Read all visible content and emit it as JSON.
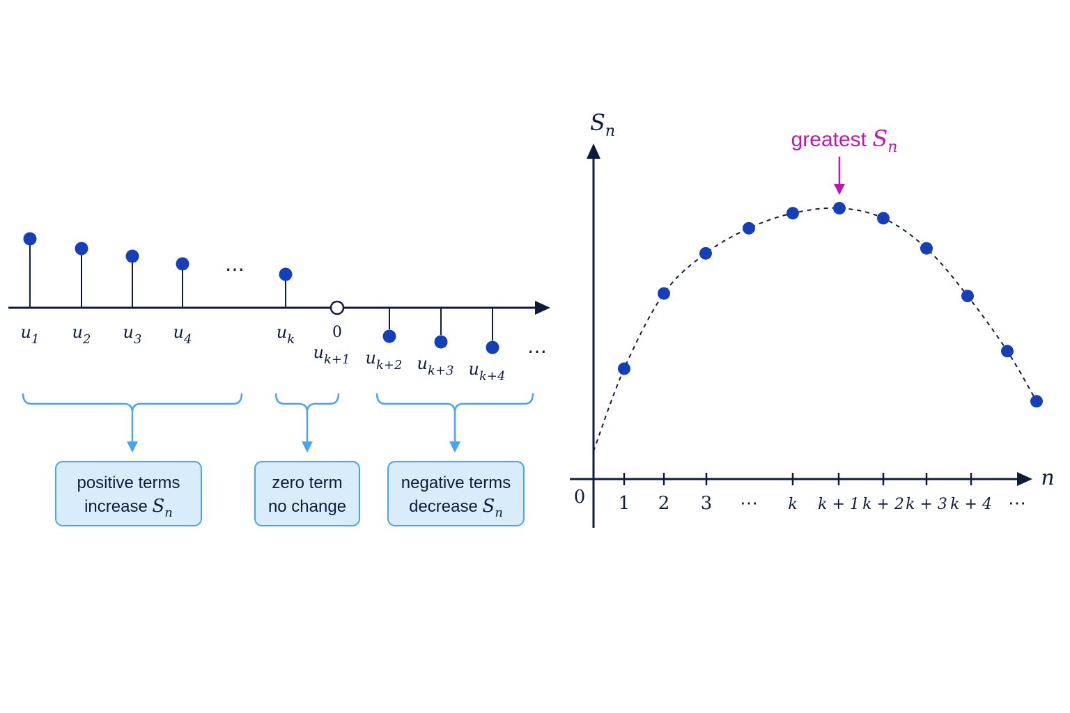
{
  "colors": {
    "axis": "#0f1b3d",
    "dot": "#1340b8",
    "bracket": "#4aa3ee",
    "box_fill": "#d8ecfb",
    "box_border": "#4aa3ee",
    "highlight": "#c014b8"
  },
  "left_diagram": {
    "terms": [
      {
        "base": "u",
        "sub": "1"
      },
      {
        "base": "u",
        "sub": "2"
      },
      {
        "base": "u",
        "sub": "3"
      },
      {
        "base": "u",
        "sub": "4"
      },
      {
        "base": "u",
        "sub": "k"
      },
      {
        "base": "u",
        "sub": "k+1"
      },
      {
        "base": "u",
        "sub": "k+2"
      },
      {
        "base": "u",
        "sub": "k+3"
      },
      {
        "base": "u",
        "sub": "k+4"
      }
    ],
    "zero_label": "0",
    "ellipsis_mid": "⋯",
    "ellipsis_end": "⋯",
    "groups": [
      {
        "line1": "positive terms",
        "line2_text": "increase ",
        "line2_sym": "S",
        "line2_sub": "n"
      },
      {
        "line1": "zero term",
        "line2_text": "no change",
        "line2_sym": "",
        "line2_sub": ""
      },
      {
        "line1": "negative terms",
        "line2_text": "decrease ",
        "line2_sym": "S",
        "line2_sub": "n"
      }
    ]
  },
  "chart_data": {
    "type": "scatter",
    "title": "",
    "xlabel": "n",
    "ylabel": "S",
    "ylabel_sub": "n",
    "origin_label": "0",
    "x_ticks": [
      "1",
      "2",
      "3",
      "⋯",
      "k",
      "k+1",
      "k+2",
      "k+3",
      "k+4",
      "⋯"
    ],
    "series": [
      {
        "x": [
          1,
          2,
          3,
          4,
          5,
          6,
          7,
          8,
          9,
          10,
          11
        ],
        "y": [
          4.4,
          7.4,
          9.0,
          10.0,
          10.6,
          10.8,
          10.4,
          9.2,
          7.3,
          5.1,
          3.1
        ]
      }
    ],
    "trend_start_y": 0.5,
    "ylim": [
      0,
      12
    ],
    "annotation": {
      "text": "greatest ",
      "sym": "S",
      "sub": "n",
      "at_index": 5
    }
  }
}
